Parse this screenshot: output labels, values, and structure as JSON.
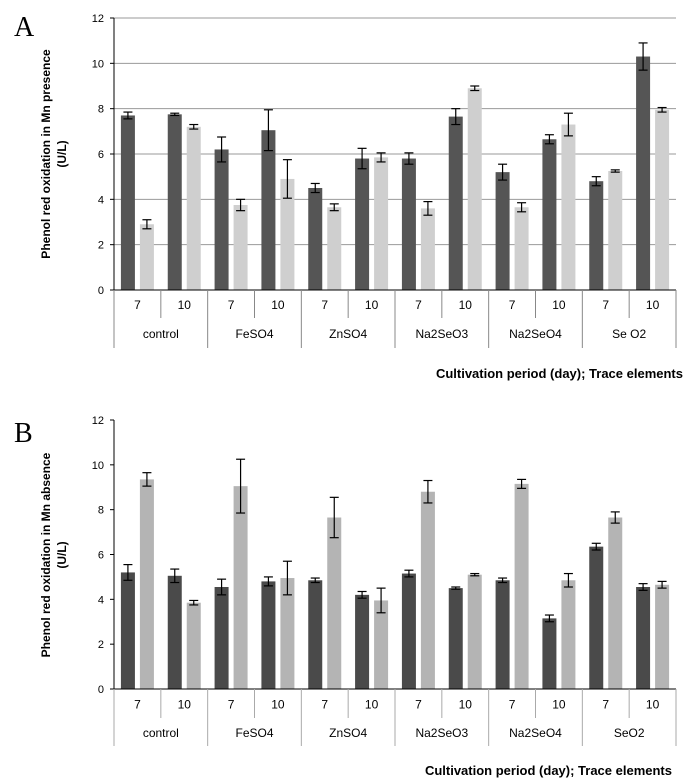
{
  "chart_data": [
    {
      "panel": "A",
      "type": "bar",
      "ylabel": "Phenol red oxidation in Mn presence (U/L)",
      "xlabel": "Cultivation period (day); Trace elements",
      "ylim": [
        0,
        12
      ],
      "yticks": [
        0,
        2,
        4,
        6,
        8,
        10,
        12
      ],
      "groups": [
        "control",
        "FeSO4",
        "ZnSO4",
        "Na2SeO3",
        "Na2SeO4",
        "Se O2"
      ],
      "days": [
        "7",
        "10"
      ],
      "grid": true,
      "colors": {
        "series_1": "#555555",
        "series_2": "#cfcfcf"
      },
      "series": [
        {
          "values": [
            7.7,
            7.75,
            6.2,
            7.05,
            4.5,
            5.8,
            5.8,
            7.65,
            5.2,
            6.65,
            4.8,
            10.3
          ],
          "errors": [
            0.15,
            0.05,
            0.55,
            0.9,
            0.2,
            0.45,
            0.25,
            0.35,
            0.35,
            0.2,
            0.2,
            0.6
          ]
        },
        {
          "values": [
            2.9,
            7.2,
            3.75,
            4.9,
            3.65,
            5.85,
            3.6,
            8.9,
            3.65,
            7.3,
            5.25,
            7.95
          ],
          "errors": [
            0.2,
            0.1,
            0.25,
            0.85,
            0.15,
            0.2,
            0.3,
            0.1,
            0.2,
            0.5,
            0.05,
            0.1
          ]
        }
      ]
    },
    {
      "panel": "B",
      "type": "bar",
      "ylabel": "Phenol red oxidation in Mn absence (U/L)",
      "xlabel": "Cultivation period (day); Trace elements",
      "ylim": [
        0,
        12
      ],
      "yticks": [
        0,
        2,
        4,
        6,
        8,
        10,
        12
      ],
      "groups": [
        "control",
        "FeSO4",
        "ZnSO4",
        "Na2SeO3",
        "Na2SeO4",
        "SeO2"
      ],
      "days": [
        "7",
        "10"
      ],
      "grid": false,
      "colors": {
        "series_1": "#4a4a4a",
        "series_2": "#b4b4b4"
      },
      "series": [
        {
          "values": [
            5.2,
            5.05,
            4.55,
            4.8,
            4.85,
            4.2,
            5.15,
            4.5,
            4.85,
            3.15,
            6.35,
            4.55
          ],
          "errors": [
            0.35,
            0.3,
            0.35,
            0.2,
            0.1,
            0.15,
            0.15,
            0.05,
            0.1,
            0.15,
            0.15,
            0.15
          ]
        },
        {
          "values": [
            9.35,
            3.85,
            9.05,
            4.95,
            7.65,
            3.95,
            8.8,
            5.1,
            9.15,
            4.85,
            7.65,
            4.65
          ],
          "errors": [
            0.3,
            0.1,
            1.2,
            0.75,
            0.9,
            0.55,
            0.5,
            0.05,
            0.2,
            0.3,
            0.25,
            0.15
          ]
        }
      ]
    }
  ]
}
